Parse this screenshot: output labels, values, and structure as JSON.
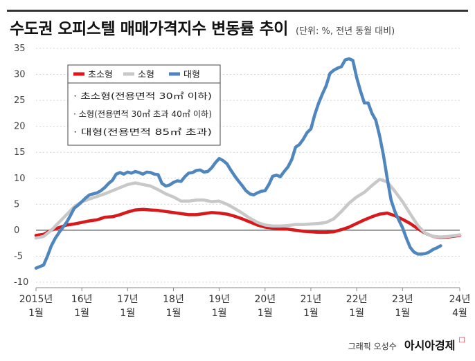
{
  "header": {
    "title": "수도권 오피스텔 매매가격지수 변동률 추이",
    "unit_note": "(단위: %, 전년 동월 대비)"
  },
  "footer": {
    "graphic_label": "그래픽 오성수",
    "brand": "아시아경제",
    "brand_mark": "□"
  },
  "chart_data": {
    "type": "line",
    "ylim": [
      -10,
      35
    ],
    "yticks": [
      35,
      30,
      25,
      20,
      15,
      10,
      5,
      0,
      -5,
      -10
    ],
    "xlim": [
      0,
      111
    ],
    "xticks": [
      {
        "x": 0,
        "line1": "2015년",
        "line2": "1월"
      },
      {
        "x": 12,
        "line1": "16년",
        "line2": "1월"
      },
      {
        "x": 24,
        "line1": "17년",
        "line2": "1월"
      },
      {
        "x": 36,
        "line1": "18년",
        "line2": "1월"
      },
      {
        "x": 48,
        "line1": "19년",
        "line2": "1월"
      },
      {
        "x": 60,
        "line1": "20년",
        "line2": "1월"
      },
      {
        "x": 72,
        "line1": "21년",
        "line2": "1월"
      },
      {
        "x": 84,
        "line1": "22년",
        "line2": "1월"
      },
      {
        "x": 96,
        "line1": "23년",
        "line2": "1월"
      },
      {
        "x": 111,
        "line1": "24년",
        "line2": "4월"
      }
    ],
    "x_index_note": "x = months since 2015년 1월",
    "legend_position": "top-left",
    "notes": [
      "· 초소형(전용면적 30㎡ 이하)",
      "· 소형(전용면적 30㎡ 초과 40㎡ 이하)",
      "· 대형(전용면적 85㎡ 초과)"
    ],
    "series": [
      {
        "name": "초소형",
        "color": "#d7191c",
        "points": [
          [
            0,
            -1
          ],
          [
            2,
            -0.8
          ],
          [
            4,
            0
          ],
          [
            6,
            0.5
          ],
          [
            8,
            1
          ],
          [
            10,
            1.2
          ],
          [
            12,
            1.5
          ],
          [
            14,
            1.8
          ],
          [
            16,
            2
          ],
          [
            18,
            2.5
          ],
          [
            20,
            2.6
          ],
          [
            22,
            3
          ],
          [
            24,
            3.5
          ],
          [
            26,
            3.9
          ],
          [
            28,
            4
          ],
          [
            30,
            3.9
          ],
          [
            32,
            3.8
          ],
          [
            34,
            3.6
          ],
          [
            36,
            3.4
          ],
          [
            38,
            3.2
          ],
          [
            40,
            3
          ],
          [
            42,
            3
          ],
          [
            44,
            3.2
          ],
          [
            46,
            3.4
          ],
          [
            48,
            3.3
          ],
          [
            50,
            3.1
          ],
          [
            52,
            2.7
          ],
          [
            54,
            2.2
          ],
          [
            56,
            1.6
          ],
          [
            58,
            1
          ],
          [
            60,
            0.6
          ],
          [
            62,
            0.4
          ],
          [
            64,
            0.3
          ],
          [
            66,
            0.2
          ],
          [
            68,
            0
          ],
          [
            70,
            -0.2
          ],
          [
            72,
            -0.3
          ],
          [
            74,
            -0.4
          ],
          [
            76,
            -0.4
          ],
          [
            78,
            -0.3
          ],
          [
            80,
            0.1
          ],
          [
            82,
            0.6
          ],
          [
            84,
            1.3
          ],
          [
            86,
            2
          ],
          [
            88,
            2.6
          ],
          [
            90,
            3.1
          ],
          [
            92,
            3.3
          ],
          [
            94,
            2.8
          ],
          [
            96,
            2.1
          ],
          [
            98,
            1.3
          ],
          [
            100,
            0.3
          ],
          [
            102,
            -0.6
          ],
          [
            104,
            -1.2
          ],
          [
            106,
            -1.4
          ],
          [
            108,
            -1.3
          ],
          [
            110,
            -1.1
          ],
          [
            111,
            -1
          ]
        ]
      },
      {
        "name": "소형",
        "color": "#c8c8c8",
        "points": [
          [
            0,
            -1.5
          ],
          [
            2,
            -1.2
          ],
          [
            4,
            0
          ],
          [
            6,
            1.5
          ],
          [
            8,
            3
          ],
          [
            10,
            4.5
          ],
          [
            12,
            5.5
          ],
          [
            14,
            6
          ],
          [
            16,
            6.5
          ],
          [
            18,
            7
          ],
          [
            20,
            7.6
          ],
          [
            22,
            8.2
          ],
          [
            24,
            8.8
          ],
          [
            26,
            9.1
          ],
          [
            28,
            8.8
          ],
          [
            30,
            8.5
          ],
          [
            32,
            7.8
          ],
          [
            34,
            7
          ],
          [
            36,
            6.4
          ],
          [
            38,
            5.6
          ],
          [
            40,
            5.6
          ],
          [
            42,
            5.8
          ],
          [
            44,
            5.8
          ],
          [
            46,
            5.5
          ],
          [
            48,
            5.6
          ],
          [
            50,
            5
          ],
          [
            52,
            4.2
          ],
          [
            54,
            3.3
          ],
          [
            56,
            2.3
          ],
          [
            58,
            1.5
          ],
          [
            60,
            1
          ],
          [
            62,
            0.8
          ],
          [
            64,
            0.8
          ],
          [
            66,
            0.9
          ],
          [
            68,
            1.1
          ],
          [
            70,
            1.1
          ],
          [
            72,
            1.2
          ],
          [
            74,
            1.3
          ],
          [
            76,
            1.5
          ],
          [
            78,
            2.2
          ],
          [
            80,
            3.6
          ],
          [
            82,
            5.2
          ],
          [
            84,
            6.4
          ],
          [
            86,
            7.3
          ],
          [
            88,
            8.6
          ],
          [
            90,
            9.8
          ],
          [
            92,
            9.3
          ],
          [
            94,
            7.5
          ],
          [
            96,
            5.5
          ],
          [
            98,
            3.2
          ],
          [
            100,
            0.9
          ],
          [
            102,
            -0.6
          ],
          [
            104,
            -1.2
          ],
          [
            106,
            -1.3
          ],
          [
            108,
            -1.2
          ],
          [
            110,
            -1
          ],
          [
            111,
            -0.9
          ]
        ]
      },
      {
        "name": "대형",
        "color": "#4f86bd",
        "points": [
          [
            0,
            -7.3
          ],
          [
            1,
            -7
          ],
          [
            2,
            -6.7
          ],
          [
            3,
            -5
          ],
          [
            4,
            -3
          ],
          [
            5,
            -1.6
          ],
          [
            6,
            -0.5
          ],
          [
            7,
            0.5
          ],
          [
            8,
            1.5
          ],
          [
            9,
            2.8
          ],
          [
            10,
            4.2
          ],
          [
            11,
            4.8
          ],
          [
            12,
            5.5
          ],
          [
            13,
            6.2
          ],
          [
            14,
            6.8
          ],
          [
            15,
            7
          ],
          [
            16,
            7.2
          ],
          [
            17,
            7.6
          ],
          [
            18,
            8.2
          ],
          [
            19,
            9
          ],
          [
            20,
            9.6
          ],
          [
            21,
            10.8
          ],
          [
            22,
            11.1
          ],
          [
            23,
            10.8
          ],
          [
            24,
            11.2
          ],
          [
            25,
            11
          ],
          [
            26,
            11.3
          ],
          [
            27,
            11.1
          ],
          [
            28,
            10.8
          ],
          [
            29,
            11.2
          ],
          [
            30,
            11.1
          ],
          [
            31,
            10.8
          ],
          [
            32,
            10.7
          ],
          [
            33,
            9
          ],
          [
            34,
            8.5
          ],
          [
            35,
            8.7
          ],
          [
            36,
            9.2
          ],
          [
            37,
            9.5
          ],
          [
            38,
            9.4
          ],
          [
            39,
            10.3
          ],
          [
            40,
            11
          ],
          [
            41,
            11.1
          ],
          [
            42,
            11.5
          ],
          [
            43,
            11.6
          ],
          [
            44,
            11.2
          ],
          [
            45,
            11.3
          ],
          [
            46,
            12
          ],
          [
            47,
            13
          ],
          [
            48,
            13.8
          ],
          [
            49,
            13.4
          ],
          [
            50,
            12.8
          ],
          [
            51,
            11.6
          ],
          [
            52,
            10.5
          ],
          [
            53,
            9.5
          ],
          [
            54,
            8.6
          ],
          [
            55,
            7.6
          ],
          [
            56,
            7
          ],
          [
            57,
            6.8
          ],
          [
            58,
            7.2
          ],
          [
            59,
            7.5
          ],
          [
            60,
            7.6
          ],
          [
            61,
            8.8
          ],
          [
            62,
            10.4
          ],
          [
            63,
            10.6
          ],
          [
            64,
            10.3
          ],
          [
            65,
            11.3
          ],
          [
            66,
            12.2
          ],
          [
            67,
            13.6
          ],
          [
            68,
            16
          ],
          [
            69,
            16.5
          ],
          [
            70,
            17.5
          ],
          [
            71,
            18.8
          ],
          [
            72,
            19.5
          ],
          [
            73,
            22.2
          ],
          [
            74,
            24.4
          ],
          [
            75,
            26.2
          ],
          [
            76,
            27.8
          ],
          [
            77,
            30.2
          ],
          [
            78,
            30.8
          ],
          [
            79,
            31.2
          ],
          [
            80,
            31.5
          ],
          [
            81,
            32.8
          ],
          [
            82,
            33
          ],
          [
            83,
            32.7
          ],
          [
            84,
            29.4
          ],
          [
            85,
            26.8
          ],
          [
            86,
            24.5
          ],
          [
            87,
            24.5
          ],
          [
            88,
            22.5
          ],
          [
            89,
            21.2
          ],
          [
            90,
            18.2
          ],
          [
            91,
            14.5
          ],
          [
            92,
            10
          ],
          [
            93,
            5.8
          ],
          [
            94,
            3.6
          ],
          [
            95,
            2
          ],
          [
            96,
            0.5
          ],
          [
            97,
            -1.5
          ],
          [
            98,
            -3.3
          ],
          [
            99,
            -4.2
          ],
          [
            100,
            -4.6
          ],
          [
            101,
            -4.6
          ],
          [
            102,
            -4.5
          ],
          [
            103,
            -4.2
          ],
          [
            104,
            -3.7
          ],
          [
            105,
            -3.4
          ],
          [
            106,
            -3
          ]
        ]
      }
    ]
  }
}
